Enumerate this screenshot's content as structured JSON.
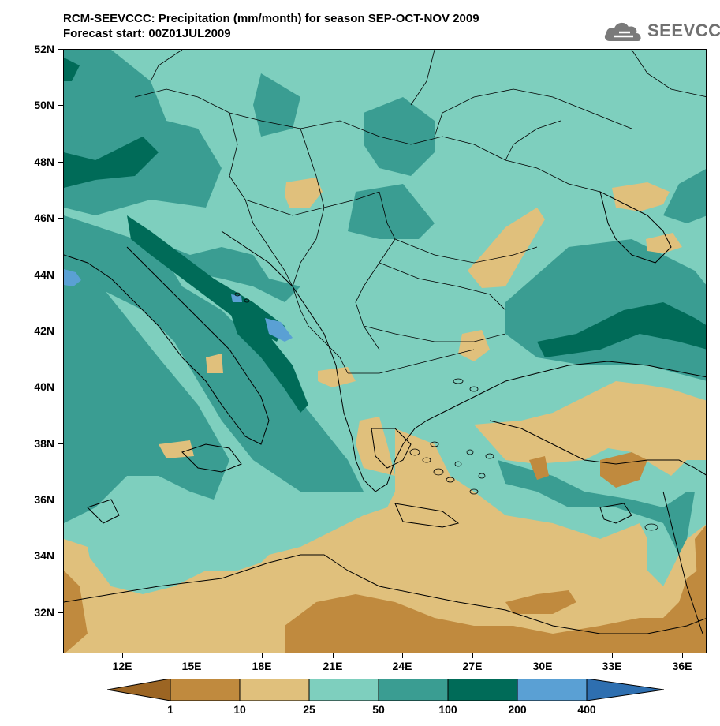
{
  "title": {
    "line1": "RCM-SEEVCCC: Precipitation (mm/month) for season SEP-OCT-NOV 2009",
    "line2": "Forecast start: 00Z01JUL2009"
  },
  "logo": {
    "text": "SEEVCCC",
    "icon": "cloud-logo-icon"
  },
  "map": {
    "region": "South-East Europe / Eastern Mediterranean",
    "lat_labels": [
      "52N",
      "50N",
      "48N",
      "46N",
      "44N",
      "42N",
      "40N",
      "38N",
      "36N",
      "34N",
      "32N"
    ],
    "lon_labels": [
      "12E",
      "15E",
      "18E",
      "21E",
      "24E",
      "27E",
      "30E",
      "33E",
      "36E"
    ]
  },
  "colorbar": {
    "labels": [
      "1",
      "10",
      "25",
      "50",
      "100",
      "200",
      "400"
    ],
    "colors": [
      "#9c6523",
      "#c08a3e",
      "#e0c07c",
      "#7ecfbe",
      "#3a9d92",
      "#006b58",
      "#5aa0d4",
      "#2e6fb0"
    ]
  },
  "palette": {
    "lt25": "#e0c07c",
    "lt10": "#c08a3e",
    "lt1": "#9c6523",
    "r25_50": "#7ecfbe",
    "r50_100": "#3a9d92",
    "r100_200": "#006b58",
    "r200_400": "#5aa0d4"
  }
}
